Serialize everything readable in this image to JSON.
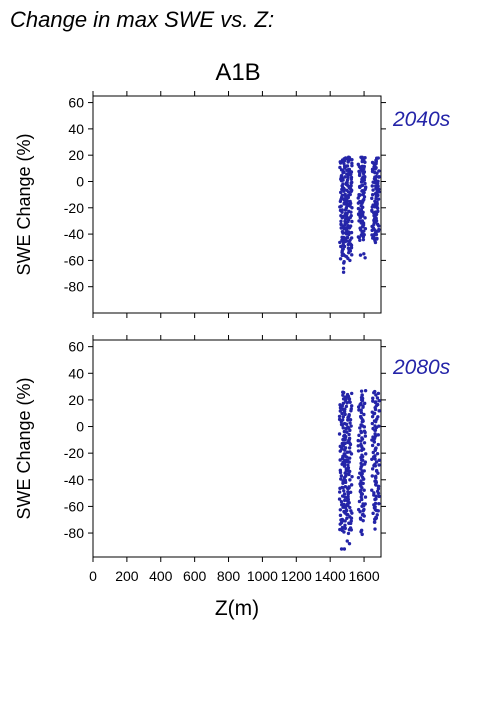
{
  "title": "Change in max SWE vs. Z:",
  "scenario": "A1B",
  "xlabel": "Z(m)",
  "colors": {
    "points": "#2424a8",
    "period_label": "#2424a8",
    "axes": "#000000"
  },
  "chart_data": [
    {
      "type": "scatter",
      "period": "2040s",
      "ylabel": "SWE Change (%)",
      "xlim": [
        0,
        1700
      ],
      "ylim": [
        -100,
        65
      ],
      "xticks": [
        "0",
        "200",
        "400",
        "600",
        "800",
        "1000",
        "1200",
        "1400",
        "1600"
      ],
      "yticks": [
        "60",
        "40",
        "20",
        "0",
        "-20",
        "-40",
        "-60",
        "-80"
      ],
      "ytick_values": [
        60,
        40,
        20,
        0,
        -20,
        -40,
        -60,
        -80
      ],
      "grid": false,
      "clusters": [
        {
          "x": 1470,
          "y_range": [
            -60,
            18
          ],
          "outliers": [
            -66,
            -69
          ]
        },
        {
          "x": 1485,
          "y_range": [
            -58,
            18
          ],
          "outliers": [
            -62
          ]
        },
        {
          "x": 1500,
          "y_range": [
            -58,
            19
          ],
          "outliers": []
        },
        {
          "x": 1515,
          "y_range": [
            -55,
            19
          ],
          "outliers": [
            -60
          ]
        },
        {
          "x": 1580,
          "y_range": [
            -44,
            19
          ],
          "outliers": [
            -56
          ]
        },
        {
          "x": 1595,
          "y_range": [
            -44,
            19
          ],
          "outliers": [
            -55,
            -58
          ]
        },
        {
          "x": 1660,
          "y_range": [
            -46,
            18
          ],
          "outliers": []
        },
        {
          "x": 1675,
          "y_range": [
            -45,
            18
          ],
          "outliers": []
        }
      ]
    },
    {
      "type": "scatter",
      "period": "2080s",
      "ylabel": "SWE Change (%)",
      "xlim": [
        0,
        1700
      ],
      "ylim": [
        -98,
        65
      ],
      "xticks": [
        "0",
        "200",
        "400",
        "600",
        "800",
        "1000",
        "1200",
        "1400",
        "1600"
      ],
      "yticks": [
        "60",
        "40",
        "20",
        "0",
        "-20",
        "-40",
        "-60",
        "-80"
      ],
      "ytick_values": [
        60,
        40,
        20,
        0,
        -20,
        -40,
        -60,
        -80
      ],
      "grid": false,
      "clusters": [
        {
          "x": 1470,
          "y_range": [
            -78,
            25
          ],
          "outliers": [
            -92
          ]
        },
        {
          "x": 1485,
          "y_range": [
            -80,
            25
          ],
          "outliers": [
            -92
          ]
        },
        {
          "x": 1500,
          "y_range": [
            -80,
            24
          ],
          "outliers": [
            -86
          ]
        },
        {
          "x": 1515,
          "y_range": [
            -78,
            25
          ],
          "outliers": [
            -88
          ]
        },
        {
          "x": 1580,
          "y_range": [
            -70,
            26
          ],
          "outliers": [
            -79,
            -81
          ]
        },
        {
          "x": 1595,
          "y_range": [
            -70,
            26
          ],
          "outliers": [
            -78
          ]
        },
        {
          "x": 1660,
          "y_range": [
            -72,
            26
          ],
          "outliers": [
            -77
          ]
        },
        {
          "x": 1675,
          "y_range": [
            -72,
            26
          ],
          "outliers": []
        }
      ]
    }
  ]
}
